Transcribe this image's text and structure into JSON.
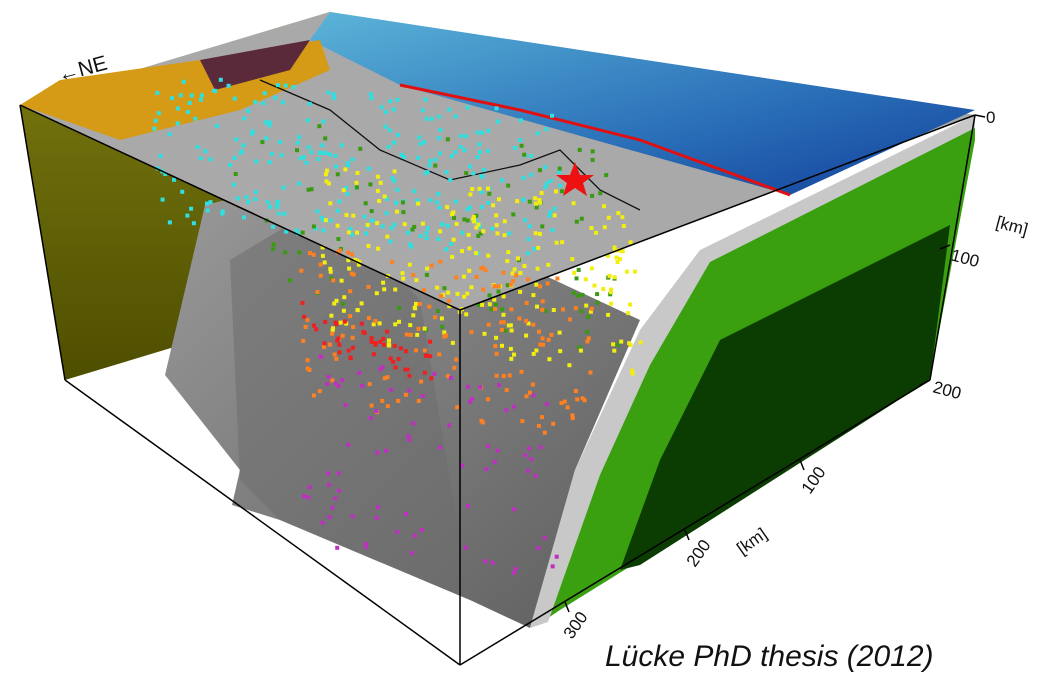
{
  "direction_label": "←NE",
  "depth_axis": {
    "unit": "[km]",
    "ticks": [
      0,
      100,
      200
    ]
  },
  "distance_axis": {
    "unit": "[km]",
    "ticks": [
      100,
      200,
      300
    ]
  },
  "credit": "Lücke PhD thesis (2012)"
}
